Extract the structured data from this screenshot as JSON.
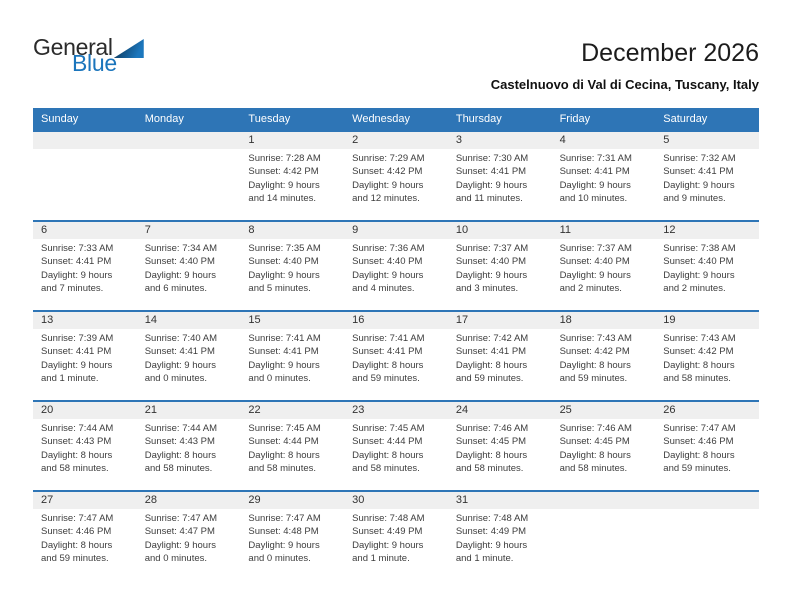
{
  "logo": {
    "part1": "General",
    "part2": "Blue"
  },
  "header": {
    "title": "December 2026",
    "subtitle": "Castelnuovo di Val di Cecina, Tuscany, Italy"
  },
  "colors": {
    "header_blue": "#2E75B6",
    "week_separator_blue": "#2E75B6",
    "day_band_gray": "#EFEFEF",
    "logo_blue": "#1B75BC"
  },
  "calendar": {
    "day_headers": [
      "Sunday",
      "Monday",
      "Tuesday",
      "Wednesday",
      "Thursday",
      "Friday",
      "Saturday"
    ],
    "cells": [
      {
        "day": "",
        "sunrise": "",
        "sunset": "",
        "daylight1": "",
        "daylight2": ""
      },
      {
        "day": "",
        "sunrise": "",
        "sunset": "",
        "daylight1": "",
        "daylight2": ""
      },
      {
        "day": "1",
        "sunrise": "Sunrise: 7:28 AM",
        "sunset": "Sunset: 4:42 PM",
        "daylight1": "Daylight: 9 hours",
        "daylight2": "and 14 minutes."
      },
      {
        "day": "2",
        "sunrise": "Sunrise: 7:29 AM",
        "sunset": "Sunset: 4:42 PM",
        "daylight1": "Daylight: 9 hours",
        "daylight2": "and 12 minutes."
      },
      {
        "day": "3",
        "sunrise": "Sunrise: 7:30 AM",
        "sunset": "Sunset: 4:41 PM",
        "daylight1": "Daylight: 9 hours",
        "daylight2": "and 11 minutes."
      },
      {
        "day": "4",
        "sunrise": "Sunrise: 7:31 AM",
        "sunset": "Sunset: 4:41 PM",
        "daylight1": "Daylight: 9 hours",
        "daylight2": "and 10 minutes."
      },
      {
        "day": "5",
        "sunrise": "Sunrise: 7:32 AM",
        "sunset": "Sunset: 4:41 PM",
        "daylight1": "Daylight: 9 hours",
        "daylight2": "and 9 minutes."
      },
      {
        "day": "6",
        "sunrise": "Sunrise: 7:33 AM",
        "sunset": "Sunset: 4:41 PM",
        "daylight1": "Daylight: 9 hours",
        "daylight2": "and 7 minutes."
      },
      {
        "day": "7",
        "sunrise": "Sunrise: 7:34 AM",
        "sunset": "Sunset: 4:40 PM",
        "daylight1": "Daylight: 9 hours",
        "daylight2": "and 6 minutes."
      },
      {
        "day": "8",
        "sunrise": "Sunrise: 7:35 AM",
        "sunset": "Sunset: 4:40 PM",
        "daylight1": "Daylight: 9 hours",
        "daylight2": "and 5 minutes."
      },
      {
        "day": "9",
        "sunrise": "Sunrise: 7:36 AM",
        "sunset": "Sunset: 4:40 PM",
        "daylight1": "Daylight: 9 hours",
        "daylight2": "and 4 minutes."
      },
      {
        "day": "10",
        "sunrise": "Sunrise: 7:37 AM",
        "sunset": "Sunset: 4:40 PM",
        "daylight1": "Daylight: 9 hours",
        "daylight2": "and 3 minutes."
      },
      {
        "day": "11",
        "sunrise": "Sunrise: 7:37 AM",
        "sunset": "Sunset: 4:40 PM",
        "daylight1": "Daylight: 9 hours",
        "daylight2": "and 2 minutes."
      },
      {
        "day": "12",
        "sunrise": "Sunrise: 7:38 AM",
        "sunset": "Sunset: 4:40 PM",
        "daylight1": "Daylight: 9 hours",
        "daylight2": "and 2 minutes."
      },
      {
        "day": "13",
        "sunrise": "Sunrise: 7:39 AM",
        "sunset": "Sunset: 4:41 PM",
        "daylight1": "Daylight: 9 hours",
        "daylight2": "and 1 minute."
      },
      {
        "day": "14",
        "sunrise": "Sunrise: 7:40 AM",
        "sunset": "Sunset: 4:41 PM",
        "daylight1": "Daylight: 9 hours",
        "daylight2": "and 0 minutes."
      },
      {
        "day": "15",
        "sunrise": "Sunrise: 7:41 AM",
        "sunset": "Sunset: 4:41 PM",
        "daylight1": "Daylight: 9 hours",
        "daylight2": "and 0 minutes."
      },
      {
        "day": "16",
        "sunrise": "Sunrise: 7:41 AM",
        "sunset": "Sunset: 4:41 PM",
        "daylight1": "Daylight: 8 hours",
        "daylight2": "and 59 minutes."
      },
      {
        "day": "17",
        "sunrise": "Sunrise: 7:42 AM",
        "sunset": "Sunset: 4:41 PM",
        "daylight1": "Daylight: 8 hours",
        "daylight2": "and 59 minutes."
      },
      {
        "day": "18",
        "sunrise": "Sunrise: 7:43 AM",
        "sunset": "Sunset: 4:42 PM",
        "daylight1": "Daylight: 8 hours",
        "daylight2": "and 59 minutes."
      },
      {
        "day": "19",
        "sunrise": "Sunrise: 7:43 AM",
        "sunset": "Sunset: 4:42 PM",
        "daylight1": "Daylight: 8 hours",
        "daylight2": "and 58 minutes."
      },
      {
        "day": "20",
        "sunrise": "Sunrise: 7:44 AM",
        "sunset": "Sunset: 4:43 PM",
        "daylight1": "Daylight: 8 hours",
        "daylight2": "and 58 minutes."
      },
      {
        "day": "21",
        "sunrise": "Sunrise: 7:44 AM",
        "sunset": "Sunset: 4:43 PM",
        "daylight1": "Daylight: 8 hours",
        "daylight2": "and 58 minutes."
      },
      {
        "day": "22",
        "sunrise": "Sunrise: 7:45 AM",
        "sunset": "Sunset: 4:44 PM",
        "daylight1": "Daylight: 8 hours",
        "daylight2": "and 58 minutes."
      },
      {
        "day": "23",
        "sunrise": "Sunrise: 7:45 AM",
        "sunset": "Sunset: 4:44 PM",
        "daylight1": "Daylight: 8 hours",
        "daylight2": "and 58 minutes."
      },
      {
        "day": "24",
        "sunrise": "Sunrise: 7:46 AM",
        "sunset": "Sunset: 4:45 PM",
        "daylight1": "Daylight: 8 hours",
        "daylight2": "and 58 minutes."
      },
      {
        "day": "25",
        "sunrise": "Sunrise: 7:46 AM",
        "sunset": "Sunset: 4:45 PM",
        "daylight1": "Daylight: 8 hours",
        "daylight2": "and 58 minutes."
      },
      {
        "day": "26",
        "sunrise": "Sunrise: 7:47 AM",
        "sunset": "Sunset: 4:46 PM",
        "daylight1": "Daylight: 8 hours",
        "daylight2": "and 59 minutes."
      },
      {
        "day": "27",
        "sunrise": "Sunrise: 7:47 AM",
        "sunset": "Sunset: 4:46 PM",
        "daylight1": "Daylight: 8 hours",
        "daylight2": "and 59 minutes."
      },
      {
        "day": "28",
        "sunrise": "Sunrise: 7:47 AM",
        "sunset": "Sunset: 4:47 PM",
        "daylight1": "Daylight: 9 hours",
        "daylight2": "and 0 minutes."
      },
      {
        "day": "29",
        "sunrise": "Sunrise: 7:47 AM",
        "sunset": "Sunset: 4:48 PM",
        "daylight1": "Daylight: 9 hours",
        "daylight2": "and 0 minutes."
      },
      {
        "day": "30",
        "sunrise": "Sunrise: 7:48 AM",
        "sunset": "Sunset: 4:49 PM",
        "daylight1": "Daylight: 9 hours",
        "daylight2": "and 1 minute."
      },
      {
        "day": "31",
        "sunrise": "Sunrise: 7:48 AM",
        "sunset": "Sunset: 4:49 PM",
        "daylight1": "Daylight: 9 hours",
        "daylight2": "and 1 minute."
      },
      {
        "day": "",
        "sunrise": "",
        "sunset": "",
        "daylight1": "",
        "daylight2": ""
      },
      {
        "day": "",
        "sunrise": "",
        "sunset": "",
        "daylight1": "",
        "daylight2": ""
      }
    ]
  }
}
